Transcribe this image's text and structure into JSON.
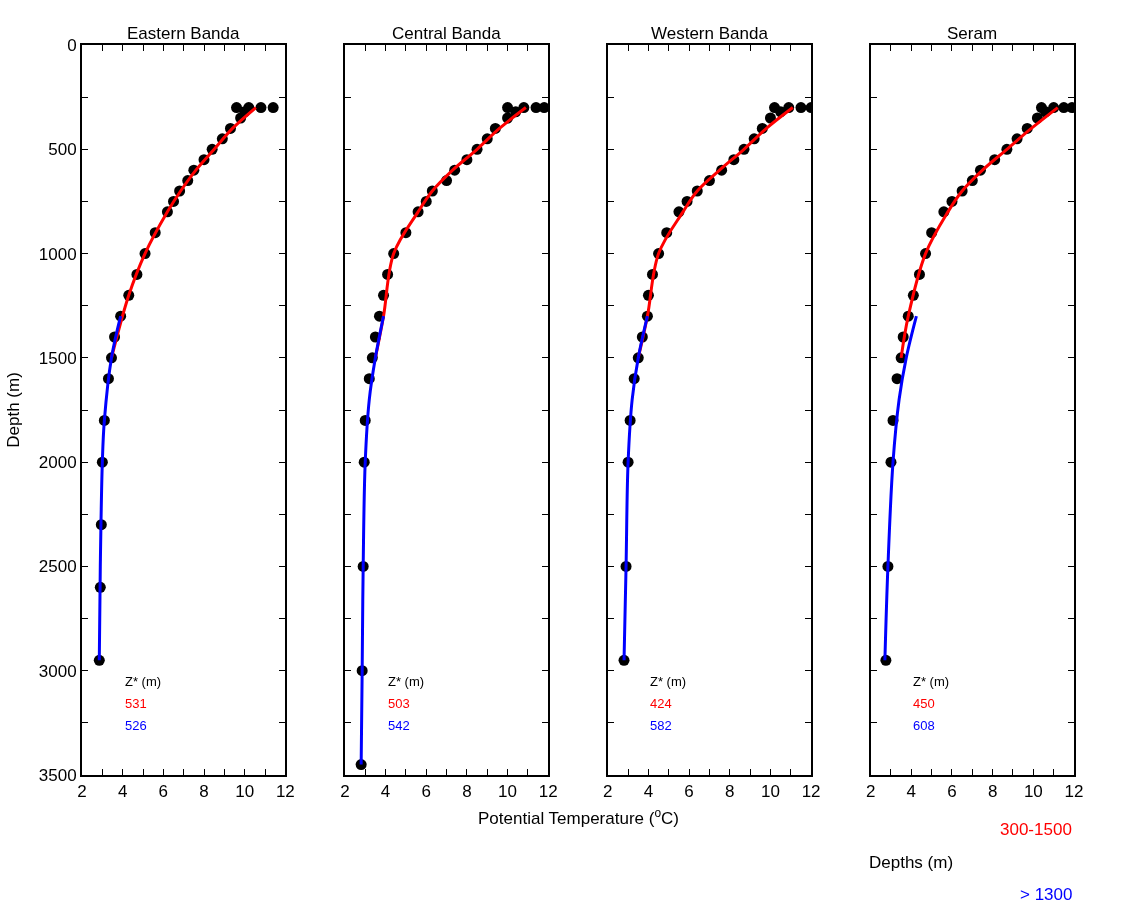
{
  "chart_data": [
    {
      "type": "line",
      "title": "Eastern Banda",
      "ylabel": "Depth (m)",
      "xlim": [
        2,
        12
      ],
      "ylim": [
        3500,
        0
      ],
      "xticks": [
        2,
        {
          "value": 3,
          "label": null
        },
        4,
        {
          "value": 5,
          "label": null
        },
        6,
        {
          "value": 7,
          "label": null
        },
        8,
        {
          "value": 9,
          "label": null
        },
        10,
        {
          "value": 11,
          "label": null
        },
        12
      ],
      "yticks": [
        0,
        {
          "value": 250,
          "label": null
        },
        500,
        {
          "value": 750,
          "label": null
        },
        1000,
        {
          "value": 1250,
          "label": null
        },
        1500,
        {
          "value": 1750,
          "label": null
        },
        2000,
        {
          "value": 2250,
          "label": null
        },
        2500,
        {
          "value": 2750,
          "label": null
        },
        3000,
        {
          "value": 3250,
          "label": null
        },
        3500
      ],
      "grid": false,
      "annotations": [
        "Z* (m)",
        "531",
        "526"
      ],
      "series": [
        {
          "type": "scatter",
          "marker": "circle",
          "color": "#000000",
          "x": [
            9.6,
            10.2,
            10.8,
            11.4,
            10.0,
            9.8,
            9.3,
            8.9,
            8.4,
            8.0,
            7.5,
            7.2,
            6.8,
            6.5,
            6.2,
            5.6,
            5.1,
            4.7,
            4.3,
            3.9,
            3.6,
            3.45,
            3.3,
            3.1,
            3.0,
            2.95,
            2.9,
            2.85
          ],
          "values": [
            300,
            300,
            300,
            300,
            320,
            350,
            400,
            450,
            500,
            550,
            600,
            650,
            700,
            750,
            800,
            900,
            1000,
            1100,
            1200,
            1300,
            1400,
            1500,
            1600,
            1800,
            2000,
            2300,
            2600,
            2950
          ]
        },
        {
          "type": "line",
          "color": "#ff0000",
          "x": [
            10.55,
            9.4,
            8.5,
            7.6,
            6.85,
            6.2,
            5.1,
            4.3,
            3.45
          ],
          "values": [
            300,
            400,
            500,
            600,
            700,
            800,
            1000,
            1200,
            1500
          ]
        },
        {
          "type": "line",
          "color": "#0000ff",
          "x": [
            3.9,
            3.45,
            3.1,
            3.0,
            2.9,
            2.85
          ],
          "values": [
            1300,
            1500,
            1800,
            2000,
            2500,
            2950
          ]
        }
      ]
    },
    {
      "type": "line",
      "title": "Central Banda",
      "xlim": [
        2,
        12
      ],
      "ylim": [
        3500,
        0
      ],
      "tick_labels": "x",
      "xticks": [
        2,
        {
          "value": 3,
          "label": null
        },
        4,
        {
          "value": 5,
          "label": null
        },
        6,
        {
          "value": 7,
          "label": null
        },
        8,
        {
          "value": 9,
          "label": null
        },
        10,
        {
          "value": 11,
          "label": null
        },
        12
      ],
      "yticks": [
        0,
        {
          "value": 250,
          "label": null
        },
        500,
        {
          "value": 750,
          "label": null
        },
        1000,
        {
          "value": 1250,
          "label": null
        },
        1500,
        {
          "value": 1750,
          "label": null
        },
        2000,
        {
          "value": 2250,
          "label": null
        },
        2500,
        {
          "value": 2750,
          "label": null
        },
        3000,
        {
          "value": 3250,
          "label": null
        },
        3500
      ],
      "grid": false,
      "xlabel": "Potential Temperature ($^{o}$C)",
      "annotations": [
        "Z* (m)",
        "503",
        "542"
      ],
      "series": [
        {
          "type": "scatter",
          "marker": "circle",
          "color": "#000000",
          "x": [
            10.0,
            10.8,
            11.4,
            11.8,
            10.4,
            10.0,
            9.4,
            9.0,
            8.5,
            8.0,
            7.4,
            7.0,
            6.3,
            6.0,
            5.6,
            5.0,
            4.4,
            4.1,
            3.9,
            3.7,
            3.5,
            3.35,
            3.2,
            3.0,
            2.95,
            2.9,
            2.85,
            2.8
          ],
          "values": [
            300,
            300,
            300,
            300,
            320,
            350,
            400,
            450,
            500,
            550,
            600,
            650,
            700,
            750,
            800,
            900,
            1000,
            1100,
            1200,
            1300,
            1400,
            1500,
            1600,
            1800,
            2000,
            2500,
            3000,
            3450
          ]
        },
        {
          "type": "line",
          "color": "#ff0000",
          "x": [
            10.9,
            9.6,
            8.5,
            7.3,
            6.3,
            5.6,
            4.4,
            3.9,
            3.5
          ],
          "values": [
            300,
            400,
            500,
            600,
            700,
            800,
            1000,
            1300,
            1500
          ]
        },
        {
          "type": "line",
          "color": "#0000ff",
          "x": [
            3.9,
            3.5,
            3.2,
            3.0,
            2.9,
            2.85,
            2.8
          ],
          "values": [
            1300,
            1500,
            1700,
            2000,
            2500,
            3000,
            3450
          ]
        }
      ]
    },
    {
      "type": "line",
      "title": "Western Banda",
      "xlim": [
        2,
        12
      ],
      "ylim": [
        3500,
        0
      ],
      "tick_labels": "x",
      "xticks": [
        2,
        {
          "value": 3,
          "label": null
        },
        4,
        {
          "value": 5,
          "label": null
        },
        6,
        {
          "value": 7,
          "label": null
        },
        8,
        {
          "value": 9,
          "label": null
        },
        10,
        {
          "value": 11,
          "label": null
        },
        12
      ],
      "yticks": [
        0,
        {
          "value": 250,
          "label": null
        },
        500,
        {
          "value": 750,
          "label": null
        },
        1000,
        {
          "value": 1250,
          "label": null
        },
        1500,
        {
          "value": 1750,
          "label": null
        },
        2000,
        {
          "value": 2250,
          "label": null
        },
        2500,
        {
          "value": 2750,
          "label": null
        },
        3000,
        {
          "value": 3250,
          "label": null
        },
        3500
      ],
      "grid": false,
      "annotations": [
        "Z* (m)",
        "424",
        "582"
      ],
      "series": [
        {
          "type": "scatter",
          "marker": "circle",
          "color": "#000000",
          "x": [
            10.2,
            10.9,
            11.5,
            12.0,
            10.5,
            10.0,
            9.6,
            9.2,
            8.7,
            8.2,
            7.6,
            7.0,
            6.4,
            5.9,
            5.5,
            4.9,
            4.5,
            4.2,
            4.0,
            3.95,
            3.7,
            3.5,
            3.3,
            3.1,
            3.0,
            2.9,
            2.8
          ],
          "values": [
            300,
            300,
            300,
            300,
            320,
            350,
            400,
            450,
            500,
            550,
            600,
            650,
            700,
            750,
            800,
            900,
            1000,
            1100,
            1200,
            1300,
            1400,
            1500,
            1600,
            1800,
            2000,
            2500,
            2950
          ]
        },
        {
          "type": "line",
          "color": "#ff0000",
          "x": [
            11.1,
            9.8,
            8.7,
            7.5,
            6.4,
            5.7,
            4.5,
            3.95,
            3.5
          ],
          "values": [
            300,
            400,
            500,
            600,
            700,
            800,
            1000,
            1300,
            1500
          ]
        },
        {
          "type": "line",
          "color": "#0000ff",
          "x": [
            3.95,
            3.5,
            3.2,
            3.0,
            2.9,
            2.8
          ],
          "values": [
            1300,
            1500,
            1700,
            2000,
            2500,
            2950
          ]
        }
      ]
    },
    {
      "type": "line",
      "title": "Seram",
      "xlim": [
        2,
        12
      ],
      "ylim": [
        3500,
        0
      ],
      "tick_labels": "x",
      "xticks": [
        2,
        {
          "value": 3,
          "label": null
        },
        4,
        {
          "value": 5,
          "label": null
        },
        6,
        {
          "value": 7,
          "label": null
        },
        8,
        {
          "value": 9,
          "label": null
        },
        10,
        {
          "value": 11,
          "label": null
        },
        12
      ],
      "yticks": [
        0,
        {
          "value": 250,
          "label": null
        },
        500,
        {
          "value": 750,
          "label": null
        },
        1000,
        {
          "value": 1250,
          "label": null
        },
        1500,
        {
          "value": 1750,
          "label": null
        },
        2000,
        {
          "value": 2250,
          "label": null
        },
        2500,
        {
          "value": 2750,
          "label": null
        },
        3000,
        {
          "value": 3250,
          "label": null
        },
        3500
      ],
      "grid": false,
      "legend": "bottom right",
      "legend_title": "Depths (m)",
      "annotations": [
        "Z* (m)",
        "450",
        "608"
      ],
      "series": [
        {
          "type": "scatter",
          "marker": "circle",
          "color": "#000000",
          "x": [
            10.4,
            11.0,
            11.5,
            11.9,
            10.6,
            10.2,
            9.7,
            9.2,
            8.7,
            8.1,
            7.4,
            7.0,
            6.5,
            6.0,
            5.6,
            5.0,
            4.7,
            4.4,
            4.1,
            3.85,
            3.6,
            3.5,
            3.3,
            3.1,
            3.0,
            2.85,
            2.75
          ],
          "values": [
            300,
            300,
            300,
            300,
            320,
            350,
            400,
            450,
            500,
            550,
            600,
            650,
            700,
            750,
            800,
            900,
            1000,
            1100,
            1200,
            1300,
            1400,
            1500,
            1600,
            1800,
            2000,
            2500,
            2950
          ]
        },
        {
          "type": "line",
          "name": "300-1500",
          "color": "#ff0000",
          "x": [
            11.2,
            9.9,
            8.7,
            7.5,
            6.5,
            5.8,
            4.7,
            3.85,
            3.5
          ],
          "values": [
            300,
            400,
            500,
            600,
            700,
            800,
            1000,
            1300,
            1500
          ]
        },
        {
          "type": "line",
          "name": "> 1300",
          "color": "#0000ff",
          "x": [
            4.25,
            3.75,
            3.4,
            3.1,
            2.85,
            2.7
          ],
          "values": [
            1300,
            1500,
            1700,
            2000,
            2500,
            2950
          ]
        }
      ]
    }
  ]
}
